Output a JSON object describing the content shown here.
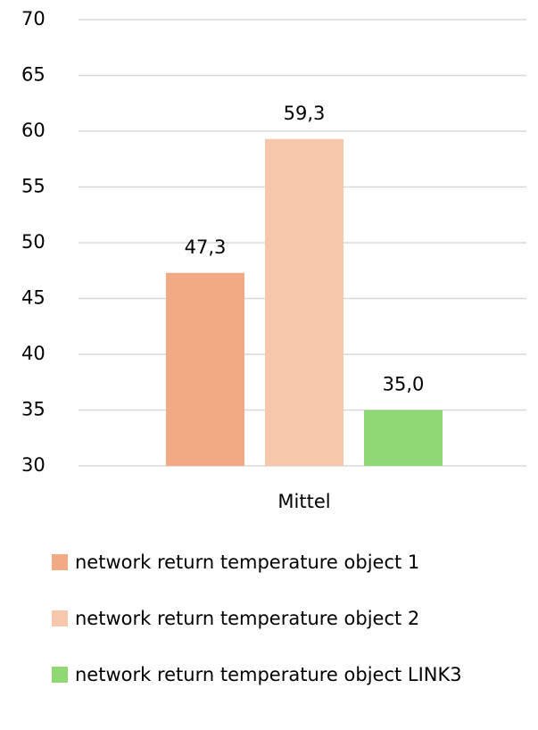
{
  "chart_data": {
    "type": "bar",
    "categories": [
      "Mittel"
    ],
    "series": [
      {
        "name": "network return temperature object 1",
        "color": "#f2aa84",
        "values": [
          47.3
        ],
        "value_labels": [
          "47,3"
        ]
      },
      {
        "name": "network return temperature object 2",
        "color": "#f7c7ac",
        "values": [
          59.3
        ],
        "value_labels": [
          "59,3"
        ]
      },
      {
        "name": "network return temperature object LINK3",
        "color": "#8ed973",
        "values": [
          35.0
        ],
        "value_labels": [
          "35,0"
        ]
      }
    ],
    "ylim": [
      30,
      70
    ],
    "yticks": [
      30,
      35,
      40,
      45,
      50,
      55,
      60,
      65,
      70
    ],
    "grid": true,
    "legend": "bottom"
  }
}
